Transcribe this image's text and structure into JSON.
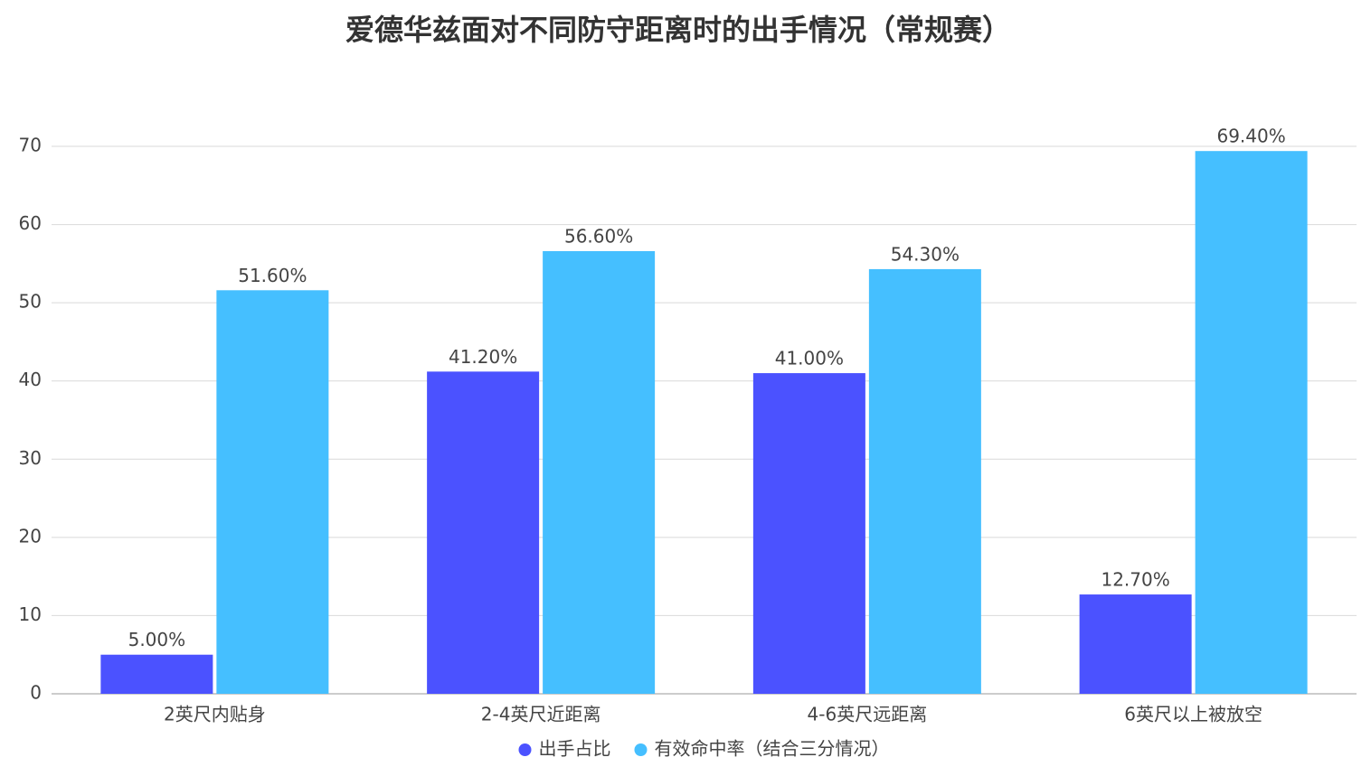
{
  "chart_data": {
    "type": "bar",
    "title": "爱德华兹面对不同防守距离时的出手情况（常规赛）",
    "categories": [
      "2英尺内贴身",
      "2-4英尺近距离",
      "4-6英尺远距离",
      "6英尺以上被放空"
    ],
    "series": [
      {
        "name": "出手占比",
        "color": "#4b52ff",
        "values": [
          5.0,
          41.2,
          41.0,
          12.7
        ],
        "value_labels": [
          "5.00%",
          "41.20%",
          "41.00%",
          "12.70%"
        ]
      },
      {
        "name": "有效命中率（结合三分情况）",
        "color": "#45bfff",
        "values": [
          51.6,
          56.6,
          54.3,
          69.4
        ],
        "value_labels": [
          "51.60%",
          "56.60%",
          "54.30%",
          "69.40%"
        ]
      }
    ],
    "ylim": [
      0,
      70
    ],
    "yticks": [
      0,
      10,
      20,
      30,
      40,
      50,
      60,
      70
    ],
    "grid": true,
    "legend": "bottom"
  }
}
